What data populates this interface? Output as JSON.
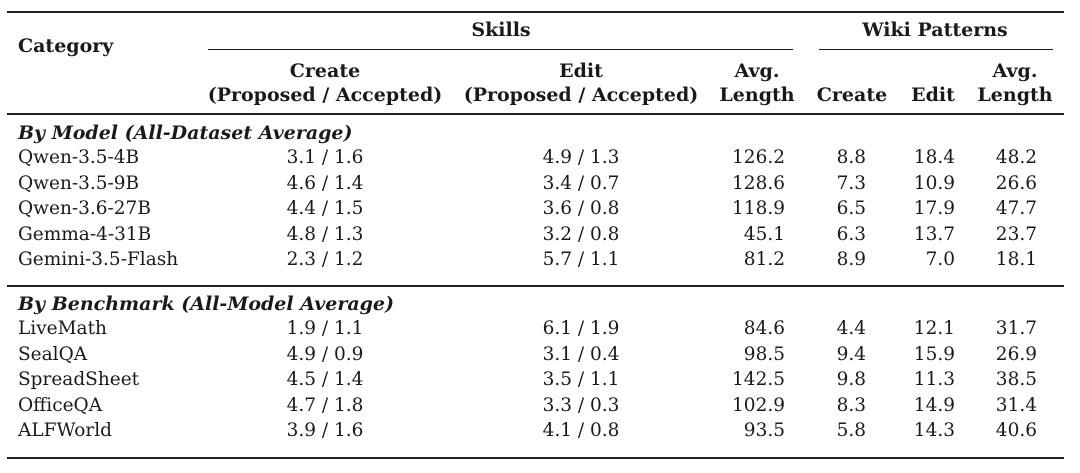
{
  "header": {
    "category": "Category",
    "skills": "Skills",
    "wiki_patterns": "Wiki Patterns",
    "skills_create_line1": "Create",
    "skills_create_line2": "(Proposed / Accepted)",
    "skills_edit_line1": "Edit",
    "skills_edit_line2": "(Proposed / Accepted)",
    "skills_avg_line1": "Avg.",
    "skills_avg_line2": "Length",
    "wiki_create": "Create",
    "wiki_edit": "Edit",
    "wiki_avg_line1": "Avg.",
    "wiki_avg_line2": "Length"
  },
  "sections": [
    {
      "title": "By Model (All-Dataset Average)",
      "rows": [
        {
          "name": "Qwen-3.5-4B",
          "skill_create": "3.1 / 1.6",
          "skill_edit": "4.9 / 1.3",
          "skill_avg": "126.2",
          "wiki_create": "8.8",
          "wiki_edit": "18.4",
          "wiki_avg": "48.2"
        },
        {
          "name": "Qwen-3.5-9B",
          "skill_create": "4.6 / 1.4",
          "skill_edit": "3.4 / 0.7",
          "skill_avg": "128.6",
          "wiki_create": "7.3",
          "wiki_edit": "10.9",
          "wiki_avg": "26.6"
        },
        {
          "name": "Qwen-3.6-27B",
          "skill_create": "4.4 / 1.5",
          "skill_edit": "3.6 / 0.8",
          "skill_avg": "118.9",
          "wiki_create": "6.5",
          "wiki_edit": "17.9",
          "wiki_avg": "47.7"
        },
        {
          "name": "Gemma-4-31B",
          "skill_create": "4.8 / 1.3",
          "skill_edit": "3.2 / 0.8",
          "skill_avg": "45.1",
          "wiki_create": "6.3",
          "wiki_edit": "13.7",
          "wiki_avg": "23.7"
        },
        {
          "name": "Gemini-3.5-Flash",
          "skill_create": "2.3 / 1.2",
          "skill_edit": "5.7 / 1.1",
          "skill_avg": "81.2",
          "wiki_create": "8.9",
          "wiki_edit": "7.0",
          "wiki_avg": "18.1"
        }
      ]
    },
    {
      "title": "By Benchmark (All-Model Average)",
      "rows": [
        {
          "name": "LiveMath",
          "skill_create": "1.9 / 1.1",
          "skill_edit": "6.1 / 1.9",
          "skill_avg": "84.6",
          "wiki_create": "4.4",
          "wiki_edit": "12.1",
          "wiki_avg": "31.7"
        },
        {
          "name": "SealQA",
          "skill_create": "4.9 / 0.9",
          "skill_edit": "3.1 / 0.4",
          "skill_avg": "98.5",
          "wiki_create": "9.4",
          "wiki_edit": "15.9",
          "wiki_avg": "26.9"
        },
        {
          "name": "SpreadSheet",
          "skill_create": "4.5 / 1.4",
          "skill_edit": "3.5 / 1.1",
          "skill_avg": "142.5",
          "wiki_create": "9.8",
          "wiki_edit": "11.3",
          "wiki_avg": "38.5"
        },
        {
          "name": "OfficeQA",
          "skill_create": "4.7 / 1.8",
          "skill_edit": "3.3 / 0.3",
          "skill_avg": "102.9",
          "wiki_create": "8.3",
          "wiki_edit": "14.9",
          "wiki_avg": "31.4"
        },
        {
          "name": "ALFWorld",
          "skill_create": "3.9 / 1.6",
          "skill_edit": "4.1 / 0.8",
          "skill_avg": "93.5",
          "wiki_create": "5.8",
          "wiki_edit": "14.3",
          "wiki_avg": "40.6"
        }
      ]
    }
  ]
}
